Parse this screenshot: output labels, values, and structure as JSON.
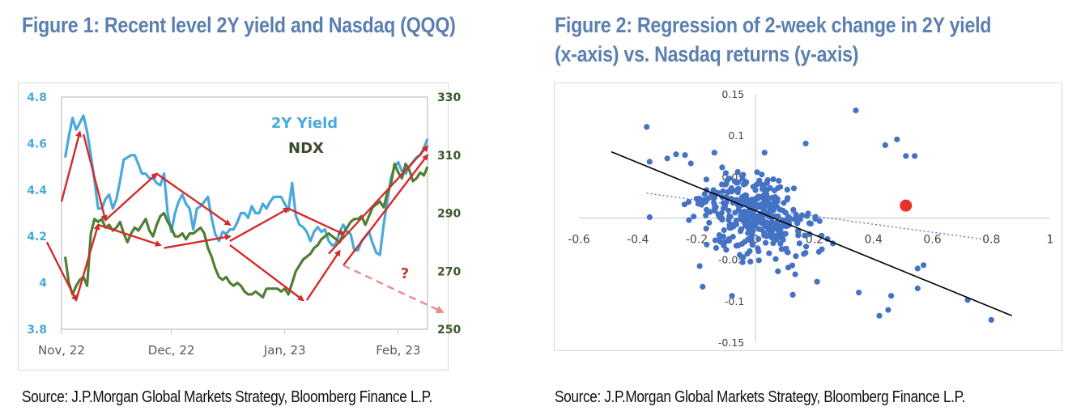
{
  "figure1": {
    "title": "Figure 1: Recent level 2Y yield and Nasdaq (QQQ)",
    "source": "Source: J.P.Morgan Global Markets Strategy, Bloomberg Finance L.P."
  },
  "figure2": {
    "title_line1": "Figure 2: Regression of 2-week change in 2Y yield",
    "title_line2": "(x-axis) vs. Nasdaq returns (y-axis)",
    "source": "Source: J.P.Morgan Global Markets Strategy, Bloomberg Finance L.P."
  },
  "colors": {
    "title": "#5b7fb0",
    "yield_line": "#4aa8dc",
    "ndx_line": "#4f7f34",
    "arrow": "#d42a2a",
    "arrow_dashed": "#e88b8b",
    "scatter_point": "#4472c4",
    "highlight_point": "#e8312a",
    "regression_line": "#000000",
    "dotted_trend": "#4472c4"
  },
  "chart_data": [
    {
      "type": "line",
      "title": "Figure 1: Recent level 2Y yield and Nasdaq (QQQ)",
      "xlabel": "",
      "x_ticks": [
        "Nov, 22",
        "Dec, 22",
        "Jan, 23",
        "Feb, 23"
      ],
      "x_range_days": [
        0,
        100
      ],
      "x_tick_days": [
        0,
        30,
        61,
        92
      ],
      "y_left": {
        "label": "",
        "ticks": [
          "3.8",
          "4",
          "4.2",
          "4.4",
          "4.6",
          "4.8"
        ],
        "range": [
          3.8,
          4.8
        ],
        "color": "#4aa8dc"
      },
      "y_right": {
        "label": "",
        "ticks": [
          "250",
          "270",
          "290",
          "310",
          "330"
        ],
        "range": [
          250,
          330
        ],
        "color": "#4f7f34"
      },
      "legend": [
        "2Y Yield",
        "NDX"
      ],
      "legend_placement": "top-center",
      "annotation": "?",
      "series": [
        {
          "name": "2Y Yield",
          "axis": "left",
          "x": [
            1,
            2,
            3,
            4,
            5,
            6,
            7,
            8,
            9,
            10,
            11,
            12,
            13,
            14,
            15,
            16,
            17,
            18,
            19,
            20,
            21,
            22,
            23,
            24,
            25,
            26,
            27,
            28,
            29,
            30,
            31,
            32,
            33,
            34,
            35,
            36,
            37,
            38,
            39,
            40,
            41,
            42,
            43,
            44,
            45,
            46,
            47,
            48,
            49,
            50,
            51,
            52,
            53,
            54,
            55,
            56,
            57,
            58,
            59,
            60,
            61,
            62,
            63,
            64,
            65,
            66,
            67,
            68,
            69,
            70,
            71,
            72,
            73,
            74,
            75,
            76,
            77,
            78,
            79,
            80,
            81,
            82,
            83,
            84,
            85,
            86,
            87,
            88,
            89,
            90,
            91,
            92,
            93,
            94,
            95,
            96,
            97,
            98,
            99,
            100
          ],
          "values": [
            4.54,
            4.63,
            4.71,
            4.66,
            4.69,
            4.72,
            4.65,
            4.55,
            4.44,
            4.32,
            4.32,
            4.36,
            4.38,
            4.32,
            4.36,
            4.44,
            4.53,
            4.54,
            4.55,
            4.55,
            4.51,
            4.47,
            4.47,
            4.45,
            4.45,
            4.43,
            4.42,
            4.47,
            4.3,
            4.22,
            4.3,
            4.35,
            4.38,
            4.34,
            4.32,
            4.23,
            4.32,
            4.33,
            4.35,
            4.37,
            4.28,
            4.21,
            4.18,
            4.22,
            4.21,
            4.23,
            4.23,
            4.26,
            4.3,
            4.3,
            4.28,
            4.33,
            4.3,
            4.3,
            4.34,
            4.32,
            4.35,
            4.37,
            4.37,
            4.37,
            4.34,
            4.31,
            4.43,
            4.29,
            4.25,
            4.24,
            4.22,
            4.18,
            4.22,
            4.24,
            4.22,
            4.23,
            4.18,
            4.16,
            4.17,
            4.22,
            4.25,
            4.22,
            4.21,
            4.14,
            4.14,
            4.18,
            4.2,
            4.22,
            4.17,
            4.13,
            4.12,
            4.25,
            4.35,
            4.45,
            4.5,
            4.52,
            4.48,
            4.47,
            4.5,
            4.52,
            4.54,
            4.55,
            4.58,
            4.62
          ]
        },
        {
          "name": "NDX",
          "axis": "right",
          "x": [
            1,
            2,
            3,
            4,
            5,
            6,
            7,
            8,
            9,
            10,
            11,
            12,
            13,
            14,
            15,
            16,
            17,
            18,
            19,
            20,
            21,
            22,
            23,
            24,
            25,
            26,
            27,
            28,
            29,
            30,
            31,
            32,
            33,
            34,
            35,
            36,
            37,
            38,
            39,
            40,
            41,
            42,
            43,
            44,
            45,
            46,
            47,
            48,
            49,
            50,
            51,
            52,
            53,
            54,
            55,
            56,
            57,
            58,
            59,
            60,
            61,
            62,
            63,
            64,
            65,
            66,
            67,
            68,
            69,
            70,
            71,
            72,
            73,
            74,
            75,
            76,
            77,
            78,
            79,
            80,
            81,
            82,
            83,
            84,
            85,
            86,
            87,
            88,
            89,
            90,
            91,
            92,
            93,
            94,
            95,
            96,
            97,
            98,
            99,
            100
          ],
          "values": [
            275,
            266,
            262,
            265,
            267,
            268,
            265,
            283,
            288,
            287,
            288,
            285,
            286,
            284,
            285,
            287,
            283,
            280,
            283,
            285,
            284,
            286,
            288,
            284,
            282,
            286,
            289,
            290,
            287,
            285,
            282,
            282,
            283,
            281,
            283,
            283,
            284,
            285,
            283,
            278,
            275,
            271,
            268,
            267,
            268,
            266,
            265,
            266,
            265,
            263,
            262,
            262,
            263,
            262,
            261,
            264,
            264,
            264,
            264,
            263,
            264,
            262,
            266,
            270,
            272,
            274,
            275,
            276,
            278,
            279,
            281,
            282,
            283,
            282,
            281,
            280,
            283,
            285,
            287,
            288,
            288,
            289,
            286,
            289,
            292,
            293,
            294,
            292,
            297,
            300,
            307,
            304,
            302,
            307,
            305,
            301,
            302,
            304,
            303,
            306
          ]
        }
      ],
      "arrows": [
        {
          "from": [
            0,
            4.35
          ],
          "to": [
            5,
            4.65
          ],
          "axis": "left"
        },
        {
          "from": [
            6,
            4.64
          ],
          "to": [
            12,
            4.27
          ],
          "axis": "left"
        },
        {
          "from": [
            12,
            4.27
          ],
          "to": [
            26,
            4.47
          ],
          "axis": "left"
        },
        {
          "from": [
            26,
            4.47
          ],
          "to": [
            46,
            4.25
          ],
          "axis": "left"
        },
        {
          "from": [
            46,
            4.18
          ],
          "to": [
            62,
            4.32
          ],
          "axis": "left"
        },
        {
          "from": [
            62,
            4.32
          ],
          "to": [
            77,
            4.21
          ],
          "axis": "left"
        },
        {
          "from": [
            -4,
            280
          ],
          "to": [
            4,
            260
          ],
          "axis": "right"
        },
        {
          "from": [
            4,
            260
          ],
          "to": [
            10,
            286
          ],
          "axis": "right"
        },
        {
          "from": [
            10,
            286
          ],
          "to": [
            27,
            279
          ],
          "axis": "right"
        },
        {
          "from": [
            28,
            278
          ],
          "to": [
            46,
            282
          ],
          "axis": "right"
        },
        {
          "from": [
            46,
            279
          ],
          "to": [
            66,
            260
          ],
          "axis": "right"
        },
        {
          "from": [
            67,
            260
          ],
          "to": [
            76,
            277
          ],
          "axis": "right"
        },
        {
          "from": [
            73,
            276
          ],
          "to": [
            100,
            313
          ],
          "axis": "right"
        },
        {
          "from": [
            77,
            272
          ],
          "to": [
            100,
            310
          ],
          "axis": "right"
        }
      ],
      "dashed_arrow": {
        "from": [
          77,
          272
        ],
        "to": [
          104,
          256
        ],
        "axis": "right"
      }
    },
    {
      "type": "scatter",
      "title": "Figure 2: Regression of 2-week change in 2Y yield (x-axis) vs. Nasdaq returns (y-axis)",
      "xlabel": "2-week change in 2Y yield",
      "ylabel": "Nasdaq returns",
      "x_ticks": [
        "-0.6",
        "-0.4",
        "-0.2",
        "0",
        "0.2",
        "0.4",
        "0.6",
        "0.8",
        "1"
      ],
      "y_ticks": [
        "0.15",
        "0.1",
        "0.05",
        "0",
        "-0.05",
        "-0.1",
        "-0.15"
      ],
      "xlim": [
        -0.6,
        1
      ],
      "ylim": [
        -0.15,
        0.15
      ],
      "grid": false,
      "regression_line": {
        "x": [
          -0.49,
          0.87
        ],
        "y": [
          0.08,
          -0.118
        ]
      },
      "dotted_trend_line": {
        "x": [
          -0.37,
          0.8
        ],
        "y": [
          0.03,
          -0.027
        ]
      },
      "highlight_point": {
        "x": 0.51,
        "y": 0.015
      },
      "outliers": [
        [
          -0.37,
          0.11
        ],
        [
          -0.36,
          0.068
        ],
        [
          -0.36,
          0.001
        ],
        [
          -0.3,
          0.072
        ],
        [
          -0.27,
          0.077
        ],
        [
          -0.24,
          0.076
        ],
        [
          -0.22,
          0.066
        ],
        [
          -0.14,
          0.079
        ],
        [
          -0.19,
          -0.058
        ],
        [
          -0.18,
          -0.083
        ],
        [
          -0.08,
          -0.094
        ],
        [
          0.03,
          0.079
        ],
        [
          0.17,
          0.09
        ],
        [
          0.34,
          0.13
        ],
        [
          0.44,
          0.088
        ],
        [
          0.51,
          0.075
        ],
        [
          0.54,
          0.075
        ],
        [
          0.48,
          0.095
        ],
        [
          0.72,
          -0.099
        ],
        [
          0.8,
          -0.123
        ],
        [
          0.45,
          -0.111
        ],
        [
          0.42,
          -0.118
        ],
        [
          0.55,
          -0.085
        ],
        [
          0.35,
          -0.09
        ],
        [
          0.46,
          -0.094
        ],
        [
          0.57,
          -0.057
        ],
        [
          0.55,
          -0.061
        ]
      ],
      "cluster": {
        "count": 380,
        "seed": 7,
        "center": [
          0.0,
          0.0
        ],
        "spread": [
          0.13,
          0.032
        ],
        "slope": -0.09
      }
    }
  ]
}
